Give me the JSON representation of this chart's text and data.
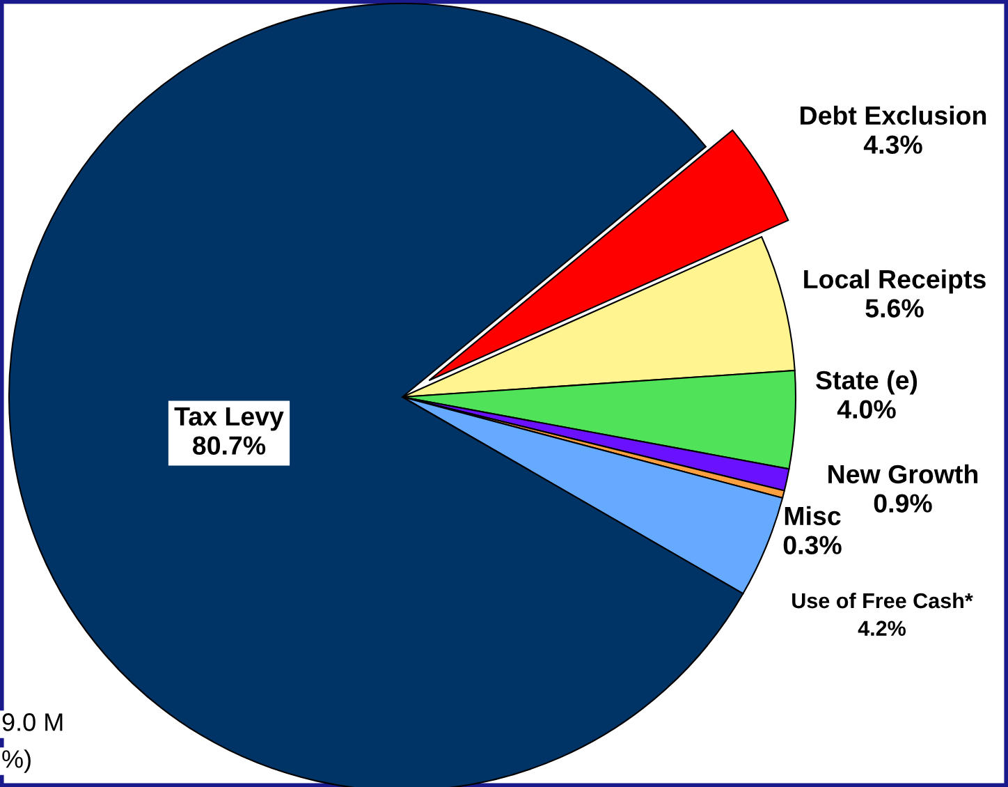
{
  "chart_data": {
    "type": "pie",
    "categories": [
      "Debt Exclusion",
      "Local Receipts",
      "State (e)",
      "New Growth",
      "Misc",
      "Use of Free Cash*",
      "Tax Levy"
    ],
    "values": [
      4.3,
      5.6,
      4.0,
      0.9,
      0.3,
      4.2,
      80.7
    ],
    "colors": [
      "#ff0000",
      "#fff48f",
      "#50e35a",
      "#6a11ff",
      "#ffa040",
      "#66aaff",
      "#003366"
    ],
    "value_labels": [
      "4.3%",
      "5.6%",
      "4.0%",
      "0.9%",
      "0.3%",
      "4.2%",
      "80.7%"
    ],
    "annotations": [
      "9.0 M",
      "%)"
    ]
  }
}
